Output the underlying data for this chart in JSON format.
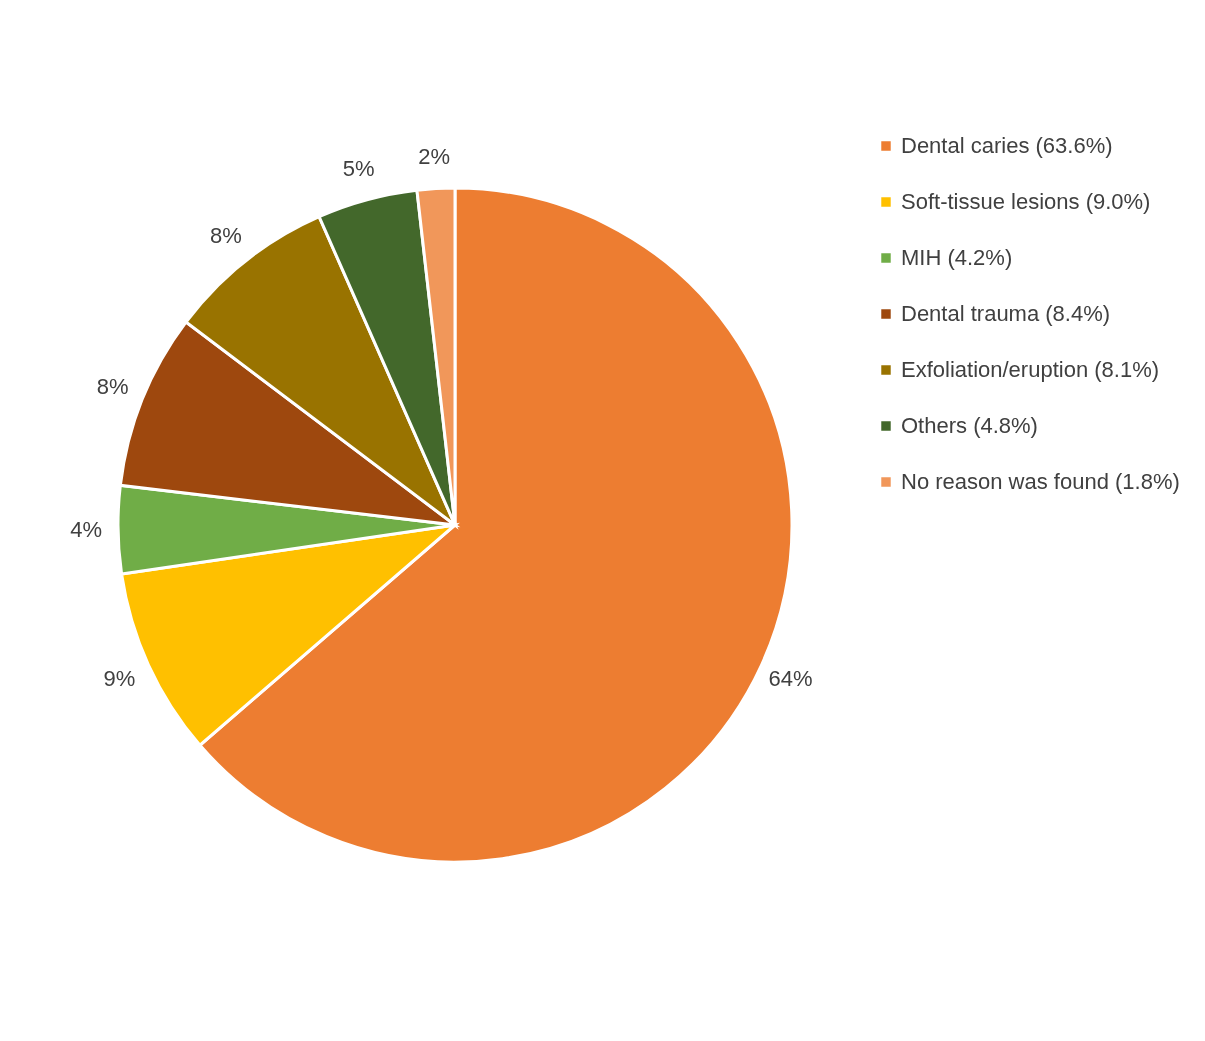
{
  "chart_data": {
    "type": "pie",
    "categories": [
      "Dental caries (63.6%)",
      "Soft-tissue lesions (9.0%)",
      "MIH (4.2%)",
      "Dental trauma (8.4%)",
      "Exfoliation/eruption (8.1%)",
      "Others (4.8%)",
      "No reason was found (1.8%)"
    ],
    "values": [
      63.6,
      9.0,
      4.2,
      8.4,
      8.1,
      4.8,
      1.8
    ],
    "colors": [
      "#ed7d31",
      "#ffc000",
      "#70ad47",
      "#9e480e",
      "#997300",
      "#43682b",
      "#f1975a"
    ],
    "value_labels": [
      "64%",
      "9%",
      "4%",
      "8%",
      "8%",
      "5%",
      "2%"
    ],
    "legend": "right"
  }
}
